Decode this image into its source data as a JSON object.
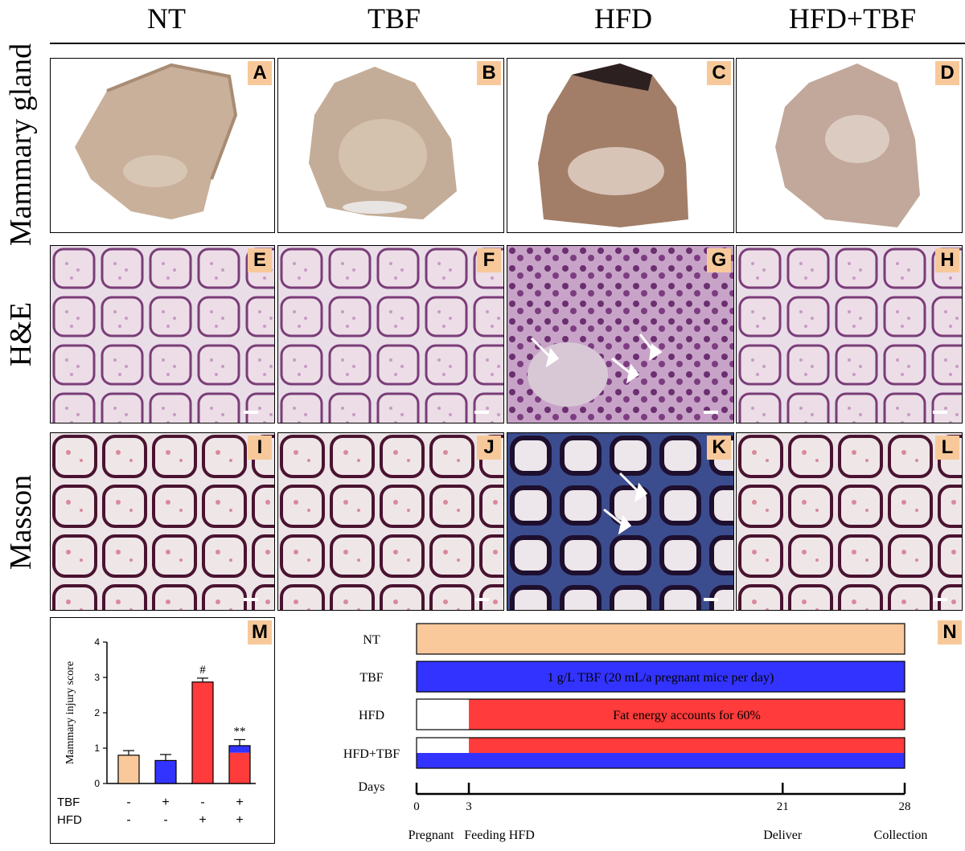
{
  "columns": [
    "NT",
    "TBF",
    "HFD",
    "HFD+TBF"
  ],
  "rows": [
    "Mammary gland",
    "H&E",
    "Masson"
  ],
  "panel_tags": {
    "gland": [
      "A",
      "B",
      "C",
      "D"
    ],
    "he": [
      "E",
      "F",
      "G",
      "H"
    ],
    "masson": [
      "I",
      "J",
      "K",
      "L"
    ],
    "chart": "M",
    "timeline": "N"
  },
  "colors": {
    "nt": "#f9c99b",
    "tbf": "#3333ff",
    "hfd": "#ff3b3b",
    "tag_bg": "#f7c99a"
  },
  "chart_data": {
    "type": "bar",
    "categories": [
      "NT",
      "TBF",
      "HFD",
      "HFD+TBF"
    ],
    "values": [
      0.8,
      0.65,
      2.87,
      1.07
    ],
    "errors": [
      0.13,
      0.17,
      0.11,
      0.17
    ],
    "annotations": [
      "",
      "",
      "#",
      "**"
    ],
    "bar_colors": [
      "#f9c99b",
      "#3333ff",
      "#ff3b3b",
      "split"
    ],
    "ylabel": "Mammary injury score",
    "ylim": [
      0,
      4
    ],
    "yticks": [
      "0",
      "1",
      "2",
      "3",
      "4"
    ],
    "factor_rows": [
      {
        "label": "TBF",
        "signs": [
          "-",
          "+",
          "-",
          "+"
        ]
      },
      {
        "label": "HFD",
        "signs": [
          "-",
          "-",
          "+",
          "+"
        ]
      }
    ]
  },
  "timeline": {
    "groups": [
      {
        "name": "NT",
        "text": ""
      },
      {
        "name": "TBF",
        "text": "1 g/L TBF   (20 mL/a pregnant mice per day)"
      },
      {
        "name": "HFD",
        "text": "Fat energy accounts for 60%"
      },
      {
        "name": "HFD+TBF",
        "text": ""
      }
    ],
    "days_label": "Days",
    "ticks": [
      {
        "day": "0",
        "event": "Pregnant"
      },
      {
        "day": "3",
        "event": "Feeding HFD"
      },
      {
        "day": "21",
        "event": "Deliver"
      },
      {
        "day": "28",
        "event": "Collection"
      }
    ]
  }
}
